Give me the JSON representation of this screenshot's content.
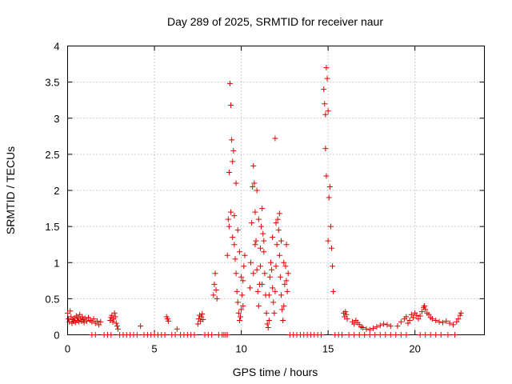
{
  "chart_data": {
    "type": "scatter",
    "title": "Day 289 of 2025, SRMTID for receiver naur",
    "xlabel": "GPS time / hours",
    "ylabel": "SRMTID / TECUs",
    "xlim": [
      0,
      24
    ],
    "ylim": [
      0,
      4
    ],
    "xticks": [
      0,
      5,
      10,
      15,
      20
    ],
    "yticks": [
      0,
      0.5,
      1,
      1.5,
      2,
      2.5,
      3,
      3.5,
      4
    ],
    "grid": true,
    "legend": "none",
    "marker": "+",
    "color": "#e00000",
    "series": [
      {
        "name": "SRMTID",
        "points": [
          [
            0.0,
            0.3
          ],
          [
            0.05,
            0.22
          ],
          [
            0.1,
            0.18
          ],
          [
            0.15,
            0.33
          ],
          [
            0.2,
            0.25
          ],
          [
            0.25,
            0.16
          ],
          [
            0.3,
            0.21
          ],
          [
            0.35,
            0.19
          ],
          [
            0.4,
            0.23
          ],
          [
            0.45,
            0.17
          ],
          [
            0.5,
            0.26
          ],
          [
            0.55,
            0.2
          ],
          [
            0.6,
            0.24
          ],
          [
            0.65,
            0.18
          ],
          [
            0.7,
            0.28
          ],
          [
            0.75,
            0.22
          ],
          [
            0.8,
            0.19
          ],
          [
            0.85,
            0.25
          ],
          [
            0.9,
            0.21
          ],
          [
            0.95,
            0.17
          ],
          [
            1.0,
            0.23
          ],
          [
            1.1,
            0.19
          ],
          [
            1.2,
            0.24
          ],
          [
            1.3,
            0.2
          ],
          [
            1.4,
            0.18
          ],
          [
            1.5,
            0.22
          ],
          [
            1.6,
            0.16
          ],
          [
            1.7,
            0.19
          ],
          [
            1.8,
            0.14
          ],
          [
            1.9,
            0.18
          ],
          [
            1.4,
            0.0
          ],
          [
            1.6,
            0.0
          ],
          [
            2.1,
            0.0
          ],
          [
            2.3,
            0.0
          ],
          [
            2.5,
            0.0
          ],
          [
            2.45,
            0.2
          ],
          [
            2.5,
            0.24
          ],
          [
            2.55,
            0.27
          ],
          [
            2.6,
            0.18
          ],
          [
            2.65,
            0.22
          ],
          [
            2.7,
            0.3
          ],
          [
            2.75,
            0.25
          ],
          [
            2.8,
            0.16
          ],
          [
            2.85,
            0.12
          ],
          [
            2.9,
            0.08
          ],
          [
            3.0,
            0.0
          ],
          [
            3.2,
            0.0
          ],
          [
            3.4,
            0.0
          ],
          [
            3.6,
            0.0
          ],
          [
            3.8,
            0.0
          ],
          [
            4.0,
            0.0
          ],
          [
            4.2,
            0.12
          ],
          [
            4.4,
            0.0
          ],
          [
            4.6,
            0.0
          ],
          [
            4.8,
            0.0
          ],
          [
            5.0,
            0.0
          ],
          [
            5.2,
            0.0
          ],
          [
            5.4,
            0.0
          ],
          [
            5.6,
            0.0
          ],
          [
            5.7,
            0.25
          ],
          [
            5.75,
            0.22
          ],
          [
            5.8,
            0.19
          ],
          [
            6.0,
            0.0
          ],
          [
            6.2,
            0.0
          ],
          [
            6.3,
            0.08
          ],
          [
            6.5,
            0.0
          ],
          [
            6.7,
            0.0
          ],
          [
            6.9,
            0.0
          ],
          [
            7.1,
            0.0
          ],
          [
            7.3,
            0.0
          ],
          [
            7.5,
            0.15
          ],
          [
            7.55,
            0.22
          ],
          [
            7.6,
            0.27
          ],
          [
            7.65,
            0.19
          ],
          [
            7.7,
            0.25
          ],
          [
            7.75,
            0.29
          ],
          [
            7.8,
            0.21
          ],
          [
            7.9,
            0.0
          ],
          [
            8.1,
            0.0
          ],
          [
            8.3,
            0.0
          ],
          [
            8.4,
            0.55
          ],
          [
            8.45,
            0.7
          ],
          [
            8.5,
            0.85
          ],
          [
            8.55,
            0.62
          ],
          [
            8.6,
            0.5
          ],
          [
            8.7,
            0.0
          ],
          [
            8.9,
            0.0
          ],
          [
            9.0,
            0.0
          ],
          [
            9.1,
            0.0
          ],
          [
            9.2,
            0.0
          ],
          [
            9.2,
            1.1
          ],
          [
            9.25,
            1.6
          ],
          [
            9.3,
            2.25
          ],
          [
            9.35,
            3.48
          ],
          [
            9.4,
            3.18
          ],
          [
            9.45,
            2.7
          ],
          [
            9.5,
            2.4
          ],
          [
            9.55,
            2.55
          ],
          [
            9.6,
            1.65
          ],
          [
            9.65,
            1.05
          ],
          [
            9.7,
            0.85
          ],
          [
            9.75,
            0.6
          ],
          [
            9.8,
            0.45
          ],
          [
            9.85,
            0.3
          ],
          [
            9.9,
            0.2
          ],
          [
            9.95,
            0.25
          ],
          [
            10.0,
            0.35
          ],
          [
            10.05,
            0.55
          ],
          [
            10.1,
            0.75
          ],
          [
            10.15,
            0.95
          ],
          [
            10.2,
            1.1
          ],
          [
            9.3,
            1.5
          ],
          [
            9.4,
            1.7
          ],
          [
            9.5,
            1.35
          ],
          [
            9.6,
            1.25
          ],
          [
            9.7,
            2.1
          ],
          [
            9.8,
            1.45
          ],
          [
            9.9,
            1.15
          ],
          [
            10.0,
            0.8
          ],
          [
            10.1,
            0.4
          ],
          [
            10.5,
            0.65
          ],
          [
            10.55,
            1.0
          ],
          [
            10.6,
            1.55
          ],
          [
            10.65,
            2.05
          ],
          [
            10.7,
            2.34
          ],
          [
            10.75,
            2.1
          ],
          [
            10.8,
            1.7
          ],
          [
            10.85,
            1.3
          ],
          [
            10.9,
            0.9
          ],
          [
            10.95,
            0.6
          ],
          [
            11.0,
            0.4
          ],
          [
            11.05,
            0.7
          ],
          [
            11.1,
            1.2
          ],
          [
            11.15,
            1.5
          ],
          [
            11.2,
            1.75
          ],
          [
            11.25,
            1.4
          ],
          [
            11.3,
            1.15
          ],
          [
            11.35,
            0.85
          ],
          [
            11.4,
            0.55
          ],
          [
            11.45,
            0.3
          ],
          [
            11.5,
            0.15
          ],
          [
            11.55,
            0.1
          ],
          [
            11.6,
            0.2
          ],
          [
            10.7,
            0.85
          ],
          [
            10.8,
            1.25
          ],
          [
            10.9,
            2.0
          ],
          [
            11.0,
            1.6
          ],
          [
            11.1,
            0.95
          ],
          [
            11.2,
            0.7
          ],
          [
            11.3,
            1.3
          ],
          [
            11.6,
            0.55
          ],
          [
            11.65,
            0.8
          ],
          [
            11.7,
            1.0
          ],
          [
            11.75,
            0.9
          ],
          [
            11.8,
            0.65
          ],
          [
            11.85,
            0.45
          ],
          [
            11.9,
            0.3
          ],
          [
            11.95,
            0.6
          ],
          [
            12.0,
            0.95
          ],
          [
            12.05,
            1.25
          ],
          [
            12.1,
            1.6
          ],
          [
            12.15,
            1.45
          ],
          [
            12.2,
            1.1
          ],
          [
            12.25,
            0.8
          ],
          [
            12.3,
            0.55
          ],
          [
            12.35,
            0.35
          ],
          [
            12.4,
            0.2
          ],
          [
            12.45,
            0.4
          ],
          [
            12.5,
            0.7
          ],
          [
            12.55,
            0.95
          ],
          [
            12.6,
            0.75
          ],
          [
            12.65,
            0.6
          ],
          [
            12.7,
            0.85
          ],
          [
            11.95,
            2.72
          ],
          [
            11.8,
            1.35
          ],
          [
            12.0,
            1.55
          ],
          [
            12.2,
            1.68
          ],
          [
            12.3,
            1.3
          ],
          [
            12.45,
            1.0
          ],
          [
            12.6,
            1.25
          ],
          [
            12.8,
            0.0
          ],
          [
            13.0,
            0.0
          ],
          [
            13.2,
            0.0
          ],
          [
            13.4,
            0.0
          ],
          [
            13.6,
            0.0
          ],
          [
            13.8,
            0.0
          ],
          [
            14.0,
            0.0
          ],
          [
            14.2,
            0.0
          ],
          [
            14.4,
            0.0
          ],
          [
            14.6,
            0.0
          ],
          [
            14.75,
            3.4
          ],
          [
            14.8,
            3.2
          ],
          [
            14.85,
            3.05
          ],
          [
            14.9,
            3.7
          ],
          [
            14.95,
            3.55
          ],
          [
            15.0,
            3.1
          ],
          [
            14.85,
            2.58
          ],
          [
            14.9,
            2.2
          ],
          [
            15.0,
            1.3
          ],
          [
            15.05,
            1.9
          ],
          [
            15.1,
            2.05
          ],
          [
            15.15,
            1.5
          ],
          [
            15.2,
            1.2
          ],
          [
            15.25,
            0.95
          ],
          [
            15.3,
            0.6
          ],
          [
            15.4,
            0.0
          ],
          [
            15.6,
            0.0
          ],
          [
            15.8,
            0.0
          ],
          [
            15.9,
            0.3
          ],
          [
            15.95,
            0.25
          ],
          [
            16.0,
            0.32
          ],
          [
            16.05,
            0.28
          ],
          [
            16.1,
            0.22
          ],
          [
            16.4,
            0.18
          ],
          [
            16.5,
            0.15
          ],
          [
            16.6,
            0.2
          ],
          [
            16.7,
            0.17
          ],
          [
            16.8,
            0.14
          ],
          [
            16.9,
            0.11
          ],
          [
            17.0,
            0.1
          ],
          [
            17.2,
            0.08
          ],
          [
            17.4,
            0.07
          ],
          [
            17.6,
            0.09
          ],
          [
            17.8,
            0.11
          ],
          [
            18.0,
            0.13
          ],
          [
            18.2,
            0.15
          ],
          [
            18.4,
            0.14
          ],
          [
            18.6,
            0.12
          ],
          [
            16.2,
            0.0
          ],
          [
            16.5,
            0.0
          ],
          [
            16.8,
            0.0
          ],
          [
            17.1,
            0.0
          ],
          [
            17.4,
            0.0
          ],
          [
            17.7,
            0.0
          ],
          [
            18.0,
            0.0
          ],
          [
            18.3,
            0.0
          ],
          [
            18.6,
            0.0
          ],
          [
            18.9,
            0.0
          ],
          [
            19.2,
            0.0
          ],
          [
            19.5,
            0.0
          ],
          [
            19.0,
            0.12
          ],
          [
            19.2,
            0.18
          ],
          [
            19.4,
            0.22
          ],
          [
            19.5,
            0.25
          ],
          [
            19.6,
            0.16
          ],
          [
            19.7,
            0.2
          ],
          [
            19.8,
            0.28
          ],
          [
            19.9,
            0.24
          ],
          [
            20.0,
            0.3
          ],
          [
            20.1,
            0.27
          ],
          [
            20.2,
            0.22
          ],
          [
            20.3,
            0.26
          ],
          [
            20.4,
            0.32
          ],
          [
            20.5,
            0.38
          ],
          [
            20.55,
            0.4
          ],
          [
            20.6,
            0.35
          ],
          [
            20.7,
            0.3
          ],
          [
            20.8,
            0.28
          ],
          [
            20.9,
            0.24
          ],
          [
            21.0,
            0.22
          ],
          [
            21.2,
            0.2
          ],
          [
            21.4,
            0.18
          ],
          [
            21.6,
            0.17
          ],
          [
            21.8,
            0.19
          ],
          [
            22.0,
            0.16
          ],
          [
            22.2,
            0.14
          ],
          [
            22.4,
            0.18
          ],
          [
            22.5,
            0.22
          ],
          [
            22.6,
            0.27
          ],
          [
            22.65,
            0.3
          ],
          [
            20.3,
            0.0
          ],
          [
            20.6,
            0.0
          ],
          [
            20.9,
            0.0
          ],
          [
            21.2,
            0.0
          ],
          [
            21.5,
            0.0
          ],
          [
            21.9,
            0.0
          ],
          [
            22.3,
            0.0
          ]
        ]
      }
    ]
  }
}
